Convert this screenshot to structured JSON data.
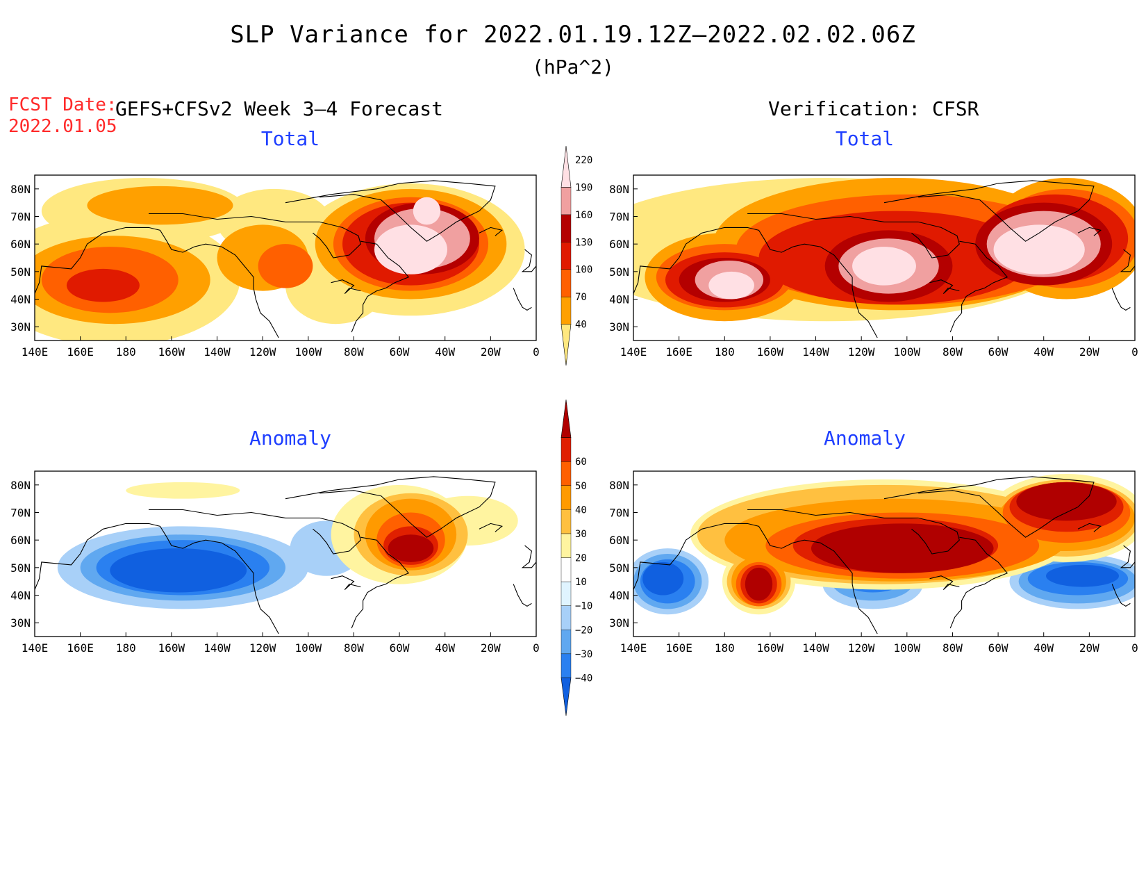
{
  "header": {
    "title": "SLP Variance for 2022.01.19.12Z–2022.02.02.06Z",
    "units": "(hPa^2)",
    "fcst_label": "FCST Date:",
    "fcst_date": "2022.01.05",
    "left_header": "GEFS+CFSv2 Week 3–4 Forecast",
    "right_header": "Verification: CFSR"
  },
  "panels": {
    "forecast_total": {
      "title": "Total"
    },
    "verif_total": {
      "title": "Total"
    },
    "forecast_anomaly": {
      "title": "Anomaly"
    },
    "verif_anomaly": {
      "title": "Anomaly"
    }
  },
  "axes": {
    "lon_labels": [
      "140E",
      "160E",
      "180",
      "160W",
      "140W",
      "120W",
      "100W",
      "80W",
      "60W",
      "40W",
      "20W",
      "0"
    ],
    "lat_labels": [
      "80N",
      "70N",
      "60N",
      "50N",
      "40N",
      "30N"
    ],
    "lon_range": [
      140,
      360
    ],
    "lat_range": [
      25,
      85
    ]
  },
  "colorbars": {
    "total": {
      "levels": [
        "40",
        "70",
        "100",
        "130",
        "160",
        "190",
        "220"
      ],
      "colors": [
        "#ffe880",
        "#ffa000",
        "#ff6000",
        "#e01a00",
        "#b40000",
        "#f0a0a0",
        "#ffe0e4"
      ]
    },
    "anomaly": {
      "levels": [
        "−40",
        "−30",
        "−20",
        "−10",
        "10",
        "20",
        "30",
        "40",
        "50",
        "60"
      ],
      "colors": [
        "#1060e0",
        "#2a80f0",
        "#60a8f0",
        "#a8d0f8",
        "#e0f4ff",
        "#ffffff",
        "#fff4a0",
        "#ffc040",
        "#ff9a00",
        "#ff6000",
        "#e02000",
        "#b00000"
      ]
    }
  },
  "fields": {
    "forecast_total": [
      {
        "lon": 175,
        "lat": 47,
        "rx": 55,
        "ry": 24,
        "v": 40
      },
      {
        "lon": 188,
        "lat": 72,
        "rx": 45,
        "ry": 12,
        "v": 40
      },
      {
        "lon": 245,
        "lat": 68,
        "rx": 25,
        "ry": 12,
        "v": 40
      },
      {
        "lon": 305,
        "lat": 58,
        "rx": 50,
        "ry": 24,
        "v": 40
      },
      {
        "lon": 272,
        "lat": 45,
        "rx": 22,
        "ry": 14,
        "v": 40
      },
      {
        "lon": 175,
        "lat": 47,
        "rx": 42,
        "ry": 16,
        "v": 70
      },
      {
        "lon": 195,
        "lat": 74,
        "rx": 32,
        "ry": 7,
        "v": 70
      },
      {
        "lon": 240,
        "lat": 55,
        "rx": 20,
        "ry": 12,
        "v": 70
      },
      {
        "lon": 305,
        "lat": 60,
        "rx": 42,
        "ry": 20,
        "v": 70
      },
      {
        "lon": 173,
        "lat": 47,
        "rx": 30,
        "ry": 12,
        "v": 100
      },
      {
        "lon": 250,
        "lat": 52,
        "rx": 12,
        "ry": 8,
        "v": 100
      },
      {
        "lon": 305,
        "lat": 60,
        "rx": 34,
        "ry": 17,
        "v": 100
      },
      {
        "lon": 170,
        "lat": 45,
        "rx": 16,
        "ry": 6,
        "v": 130
      },
      {
        "lon": 305,
        "lat": 60,
        "rx": 30,
        "ry": 15,
        "v": 130
      },
      {
        "lon": 310,
        "lat": 62,
        "rx": 25,
        "ry": 13,
        "v": 160
      },
      {
        "lon": 310,
        "lat": 62,
        "rx": 21,
        "ry": 11,
        "v": 190
      },
      {
        "lon": 305,
        "lat": 58,
        "rx": 16,
        "ry": 9,
        "v": 220
      },
      {
        "lon": 312,
        "lat": 72,
        "rx": 6,
        "ry": 5,
        "v": 220
      }
    ],
    "verif_total": [
      {
        "lon": 225,
        "lat": 58,
        "rx": 110,
        "ry": 26,
        "v": 40
      },
      {
        "lon": 180,
        "lat": 48,
        "rx": 35,
        "ry": 16,
        "v": 70
      },
      {
        "lon": 255,
        "lat": 60,
        "rx": 80,
        "ry": 24,
        "v": 70
      },
      {
        "lon": 330,
        "lat": 62,
        "rx": 35,
        "ry": 22,
        "v": 70
      },
      {
        "lon": 180,
        "lat": 48,
        "rx": 30,
        "ry": 12,
        "v": 100
      },
      {
        "lon": 260,
        "lat": 58,
        "rx": 75,
        "ry": 20,
        "v": 100
      },
      {
        "lon": 330,
        "lat": 62,
        "rx": 32,
        "ry": 18,
        "v": 100
      },
      {
        "lon": 180,
        "lat": 47,
        "rx": 26,
        "ry": 10,
        "v": 130
      },
      {
        "lon": 255,
        "lat": 55,
        "rx": 60,
        "ry": 17,
        "v": 130
      },
      {
        "lon": 325,
        "lat": 62,
        "rx": 32,
        "ry": 16,
        "v": 130
      },
      {
        "lon": 180,
        "lat": 47,
        "rx": 20,
        "ry": 8,
        "v": 160
      },
      {
        "lon": 252,
        "lat": 52,
        "rx": 28,
        "ry": 13,
        "v": 160
      },
      {
        "lon": 320,
        "lat": 60,
        "rx": 30,
        "ry": 15,
        "v": 160
      },
      {
        "lon": 182,
        "lat": 47,
        "rx": 15,
        "ry": 7,
        "v": 190
      },
      {
        "lon": 252,
        "lat": 52,
        "rx": 22,
        "ry": 10,
        "v": 190
      },
      {
        "lon": 320,
        "lat": 60,
        "rx": 25,
        "ry": 12,
        "v": 190
      },
      {
        "lon": 183,
        "lat": 45,
        "rx": 10,
        "ry": 5,
        "v": 220
      },
      {
        "lon": 250,
        "lat": 52,
        "rx": 14,
        "ry": 7,
        "v": 220
      },
      {
        "lon": 318,
        "lat": 58,
        "rx": 20,
        "ry": 9,
        "v": 220
      }
    ],
    "forecast_anomaly": [
      {
        "lon": 205,
        "lat": 50,
        "rx": 55,
        "ry": 15,
        "v": -10
      },
      {
        "lon": 268,
        "lat": 57,
        "rx": 16,
        "ry": 10,
        "v": -10
      },
      {
        "lon": 205,
        "lat": 50,
        "rx": 45,
        "ry": 12,
        "v": -20
      },
      {
        "lon": 280,
        "lat": 57,
        "rx": 6,
        "ry": 5,
        "v": -20
      },
      {
        "lon": 205,
        "lat": 50,
        "rx": 38,
        "ry": 10,
        "v": -30
      },
      {
        "lon": 203,
        "lat": 49,
        "rx": 30,
        "ry": 8,
        "v": -40
      },
      {
        "lon": 300,
        "lat": 62,
        "rx": 30,
        "ry": 18,
        "v": 10
      },
      {
        "lon": 205,
        "lat": 78,
        "rx": 25,
        "ry": 3,
        "v": 10
      },
      {
        "lon": 330,
        "lat": 67,
        "rx": 22,
        "ry": 9,
        "v": 10
      },
      {
        "lon": 305,
        "lat": 62,
        "rx": 25,
        "ry": 15,
        "v": 20
      },
      {
        "lon": 305,
        "lat": 62,
        "rx": 20,
        "ry": 13,
        "v": 30
      },
      {
        "lon": 305,
        "lat": 60,
        "rx": 15,
        "ry": 10,
        "v": 40
      },
      {
        "lon": 305,
        "lat": 58,
        "rx": 12,
        "ry": 7,
        "v": 50
      },
      {
        "lon": 305,
        "lat": 57,
        "rx": 10,
        "ry": 5,
        "v": 60
      }
    ],
    "verif_anomaly": [
      {
        "lon": 155,
        "lat": 45,
        "rx": 18,
        "ry": 12,
        "v": -10
      },
      {
        "lon": 245,
        "lat": 44,
        "rx": 22,
        "ry": 9,
        "v": -10
      },
      {
        "lon": 335,
        "lat": 45,
        "rx": 30,
        "ry": 10,
        "v": -10
      },
      {
        "lon": 155,
        "lat": 45,
        "rx": 15,
        "ry": 10,
        "v": -20
      },
      {
        "lon": 245,
        "lat": 45,
        "rx": 18,
        "ry": 7,
        "v": -20
      },
      {
        "lon": 335,
        "lat": 45,
        "rx": 26,
        "ry": 8,
        "v": -20
      },
      {
        "lon": 155,
        "lat": 45,
        "rx": 12,
        "ry": 8,
        "v": -30
      },
      {
        "lon": 245,
        "lat": 46,
        "rx": 14,
        "ry": 5,
        "v": -30
      },
      {
        "lon": 335,
        "lat": 46,
        "rx": 22,
        "ry": 6,
        "v": -30
      },
      {
        "lon": 153,
        "lat": 46,
        "rx": 9,
        "ry": 6,
        "v": -40
      },
      {
        "lon": 337,
        "lat": 47,
        "rx": 16,
        "ry": 4,
        "v": -40
      },
      {
        "lon": 250,
        "lat": 62,
        "rx": 85,
        "ry": 20,
        "v": 10
      },
      {
        "lon": 330,
        "lat": 68,
        "rx": 35,
        "ry": 16,
        "v": 10
      },
      {
        "lon": 195,
        "lat": 45,
        "rx": 16,
        "ry": 12,
        "v": 10
      },
      {
        "lon": 250,
        "lat": 62,
        "rx": 82,
        "ry": 18,
        "v": 20
      },
      {
        "lon": 330,
        "lat": 68,
        "rx": 32,
        "ry": 14,
        "v": 20
      },
      {
        "lon": 195,
        "lat": 45,
        "rx": 14,
        "ry": 10,
        "v": 20
      },
      {
        "lon": 255,
        "lat": 60,
        "rx": 75,
        "ry": 15,
        "v": 30
      },
      {
        "lon": 330,
        "lat": 68,
        "rx": 30,
        "ry": 12,
        "v": 30
      },
      {
        "lon": 195,
        "lat": 45,
        "rx": 12,
        "ry": 9,
        "v": 30
      },
      {
        "lon": 258,
        "lat": 58,
        "rx": 60,
        "ry": 12,
        "v": 40
      },
      {
        "lon": 330,
        "lat": 70,
        "rx": 28,
        "ry": 11,
        "v": 40
      },
      {
        "lon": 195,
        "lat": 44,
        "rx": 10,
        "ry": 8,
        "v": 40
      },
      {
        "lon": 255,
        "lat": 58,
        "rx": 45,
        "ry": 10,
        "v": 50
      },
      {
        "lon": 330,
        "lat": 72,
        "rx": 25,
        "ry": 9,
        "v": 50
      },
      {
        "lon": 195,
        "lat": 44,
        "rx": 8,
        "ry": 7,
        "v": 50
      },
      {
        "lon": 258,
        "lat": 57,
        "rx": 40,
        "ry": 9,
        "v": 60
      },
      {
        "lon": 330,
        "lat": 74,
        "rx": 22,
        "ry": 7,
        "v": 60
      },
      {
        "lon": 195,
        "lat": 44,
        "rx": 6,
        "ry": 6,
        "v": 60
      }
    ]
  }
}
